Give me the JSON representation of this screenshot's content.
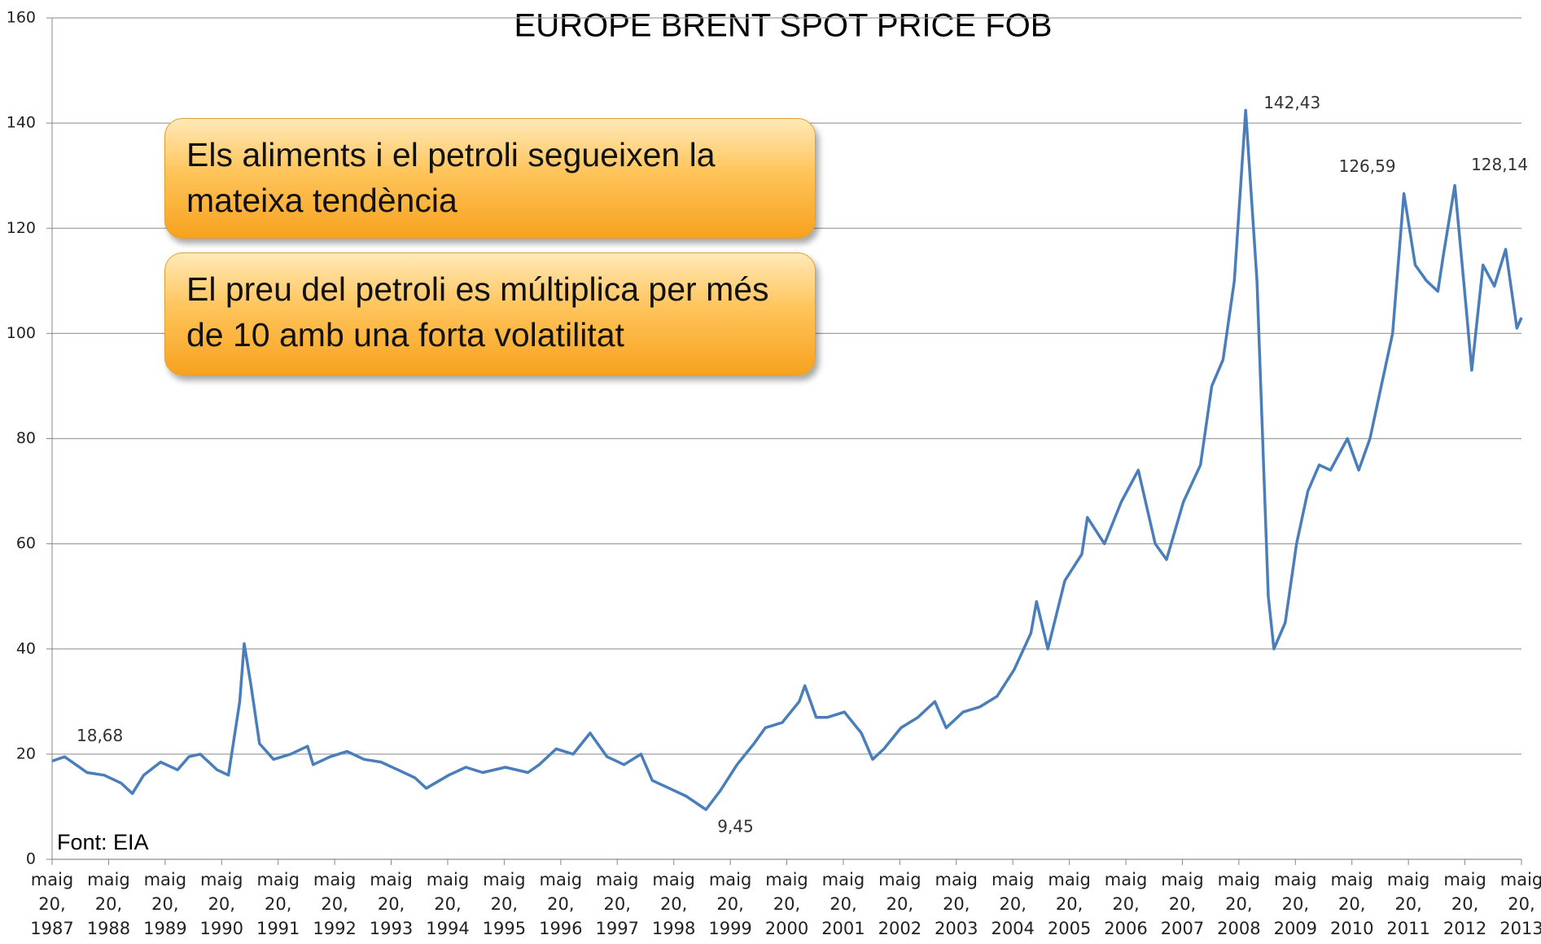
{
  "chart_data": {
    "type": "line",
    "title": "EUROPE BRENT SPOT PRICE FOB",
    "source": "Font: EIA",
    "notes": [
      "Els aliments i el petroli segueixen la mateixa tendència",
      "El preu del petroli es múltiplica per més de 10 amb una forta volatilitat"
    ],
    "color": "#4a7ebb",
    "grid": true,
    "ylim": [
      0,
      160
    ],
    "yticks": [
      0,
      20,
      40,
      60,
      80,
      100,
      120,
      140,
      160
    ],
    "xlim": [
      1987.38,
      2013.38
    ],
    "xticks": [
      {
        "value": 1987.38,
        "label": "maig 20, 1987"
      },
      {
        "value": 1988.38,
        "label": "maig 20, 1988"
      },
      {
        "value": 1989.38,
        "label": "maig 20, 1989"
      },
      {
        "value": 1990.38,
        "label": "maig 20, 1990"
      },
      {
        "value": 1991.38,
        "label": "maig 20, 1991"
      },
      {
        "value": 1992.38,
        "label": "maig 20, 1992"
      },
      {
        "value": 1993.38,
        "label": "maig 20, 1993"
      },
      {
        "value": 1994.38,
        "label": "maig 20, 1994"
      },
      {
        "value": 1995.38,
        "label": "maig 20, 1995"
      },
      {
        "value": 1996.38,
        "label": "maig 20, 1996"
      },
      {
        "value": 1997.38,
        "label": "maig 20, 1997"
      },
      {
        "value": 1998.38,
        "label": "maig 20, 1998"
      },
      {
        "value": 1999.38,
        "label": "maig 20, 1999"
      },
      {
        "value": 2000.38,
        "label": "maig 20, 2000"
      },
      {
        "value": 2001.38,
        "label": "maig 20, 2001"
      },
      {
        "value": 2002.38,
        "label": "maig 20, 2002"
      },
      {
        "value": 2003.38,
        "label": "maig 20, 2003"
      },
      {
        "value": 2004.38,
        "label": "maig 20, 2004"
      },
      {
        "value": 2005.38,
        "label": "maig 20, 2005"
      },
      {
        "value": 2006.38,
        "label": "maig 20, 2006"
      },
      {
        "value": 2007.38,
        "label": "maig 20, 2007"
      },
      {
        "value": 2008.38,
        "label": "maig 20, 2008"
      },
      {
        "value": 2009.38,
        "label": "maig 20, 2009"
      },
      {
        "value": 2010.38,
        "label": "maig 20, 2010"
      },
      {
        "value": 2011.38,
        "label": "maig 20, 2011"
      },
      {
        "value": 2012.38,
        "label": "maig 20, 2012"
      },
      {
        "value": 2013.38,
        "label": "maig 20, 2013"
      }
    ],
    "x": [
      1987.38,
      1987.6,
      1987.8,
      1988.0,
      1988.3,
      1988.6,
      1988.8,
      1989.0,
      1989.3,
      1989.6,
      1989.8,
      1990.0,
      1990.3,
      1990.5,
      1990.7,
      1990.78,
      1990.9,
      1991.05,
      1991.3,
      1991.6,
      1991.9,
      1992.0,
      1992.3,
      1992.6,
      1992.9,
      1993.2,
      1993.5,
      1993.8,
      1994.0,
      1994.4,
      1994.7,
      1995.0,
      1995.4,
      1995.8,
      1996.0,
      1996.3,
      1996.6,
      1996.9,
      1997.2,
      1997.5,
      1997.8,
      1998.0,
      1998.3,
      1998.6,
      1998.95,
      1999.2,
      1999.5,
      1999.8,
      2000.0,
      2000.3,
      2000.6,
      2000.7,
      2000.9,
      2001.1,
      2001.4,
      2001.7,
      2001.9,
      2002.1,
      2002.4,
      2002.7,
      2003.0,
      2003.2,
      2003.5,
      2003.8,
      2004.1,
      2004.4,
      2004.7,
      2004.8,
      2005.0,
      2005.3,
      2005.6,
      2005.7,
      2006.0,
      2006.3,
      2006.6,
      2006.9,
      2007.1,
      2007.4,
      2007.7,
      2007.9,
      2008.1,
      2008.3,
      2008.5,
      2008.7,
      2008.9,
      2009.0,
      2009.2,
      2009.4,
      2009.6,
      2009.8,
      2010.0,
      2010.3,
      2010.5,
      2010.7,
      2010.9,
      2011.1,
      2011.3,
      2011.5,
      2011.7,
      2011.9,
      2012.0,
      2012.2,
      2012.4,
      2012.5,
      2012.7,
      2012.9,
      2013.1,
      2013.3,
      2013.38
    ],
    "values": [
      18.68,
      19.5,
      18,
      16.5,
      16,
      14.5,
      12.5,
      16,
      18.5,
      17,
      19.5,
      20,
      17,
      16,
      30,
      41,
      33,
      22,
      19,
      20,
      21.5,
      18,
      19.5,
      20.5,
      19,
      18.5,
      17,
      15.5,
      13.5,
      16,
      17.5,
      16.5,
      17.5,
      16.5,
      18,
      21,
      20,
      24,
      19.5,
      18,
      20,
      15,
      13.5,
      12,
      9.45,
      13,
      18,
      22,
      25,
      26,
      30,
      33,
      27,
      27,
      28,
      24,
      19,
      21,
      25,
      27,
      30,
      25,
      28,
      29,
      31,
      36,
      43,
      49,
      40,
      53,
      58,
      65,
      60,
      68,
      74,
      60,
      57,
      68,
      75,
      90,
      95,
      110,
      142.43,
      110,
      50,
      40,
      45,
      60,
      70,
      75,
      74,
      80,
      74,
      80,
      90,
      100,
      126.59,
      113,
      110,
      108,
      115,
      128.14,
      105,
      93,
      113,
      109,
      116,
      101,
      103
    ],
    "annotations": [
      {
        "x": 1987.38,
        "value": 18.68,
        "label": "18,68"
      },
      {
        "x": 1998.95,
        "value": 9.45,
        "label": "9,45"
      },
      {
        "x": 2008.5,
        "value": 142.43,
        "label": "142,43"
      },
      {
        "x": 2011.3,
        "value": 126.59,
        "label": "126,59"
      },
      {
        "x": 2012.2,
        "value": 128.14,
        "label": "128,14"
      }
    ]
  }
}
